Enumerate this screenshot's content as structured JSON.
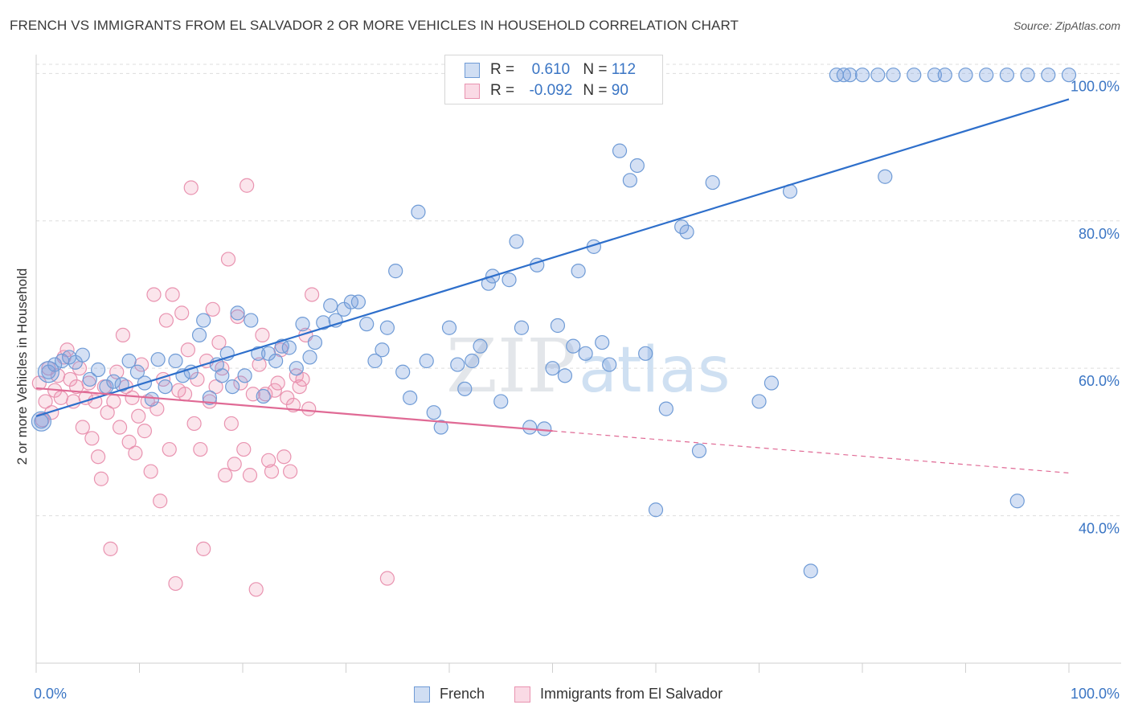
{
  "title": "FRENCH VS IMMIGRANTS FROM EL SALVADOR 2 OR MORE VEHICLES IN HOUSEHOLD CORRELATION CHART",
  "source": "Source: ZipAtlas.com",
  "watermark": {
    "zip": "ZIP",
    "atlas": "atlas"
  },
  "colors": {
    "french_fill": "rgba(120,160,220,0.32)",
    "french_stroke": "#6f9bd6",
    "french_line": "#2e6fcb",
    "elsal_fill": "rgba(240,150,180,0.25)",
    "elsal_stroke": "#e993b0",
    "elsal_line": "#e06a95",
    "axis_text": "#3a75c4",
    "grid": "#dddddd"
  },
  "legend": {
    "rows": [
      {
        "r_label": "R = ",
        "r_value": "0.610",
        "n_label": "N = ",
        "n_value": "112"
      },
      {
        "r_label": "R = ",
        "r_value": "-0.092",
        "n_label": "N = ",
        "n_value": "90"
      }
    ]
  },
  "chart_data": {
    "type": "scatter",
    "title": "FRENCH VS IMMIGRANTS FROM EL SALVADOR 2 OR MORE VEHICLES IN HOUSEHOLD CORRELATION CHART",
    "xlabel": "",
    "ylabel": "2 or more Vehicles in Household",
    "xlim": [
      0,
      100
    ],
    "ylim": [
      20,
      102
    ],
    "x_tick_labels": [
      "0.0%",
      "100.0%"
    ],
    "y_ticks": [
      40,
      60,
      80,
      100
    ],
    "y_tick_labels": [
      "40.0%",
      "60.0%",
      "80.0%",
      "100.0%"
    ],
    "grid": true,
    "legend_position": "top-center",
    "series": [
      {
        "name": "French",
        "points": [
          [
            0.5,
            52.8
          ],
          [
            1.2,
            59.5
          ],
          [
            1.8,
            60.5
          ],
          [
            2.5,
            61.0
          ],
          [
            3.2,
            61.5
          ],
          [
            3.8,
            60.8
          ],
          [
            4.5,
            61.8
          ],
          [
            5.2,
            58.5
          ],
          [
            6.0,
            59.8
          ],
          [
            6.8,
            57.5
          ],
          [
            7.5,
            58.2
          ],
          [
            8.3,
            57.8
          ],
          [
            9.0,
            61.0
          ],
          [
            9.8,
            59.5
          ],
          [
            10.5,
            58.0
          ],
          [
            11.2,
            55.8
          ],
          [
            11.8,
            61.2
          ],
          [
            12.5,
            57.5
          ],
          [
            13.5,
            61.0
          ],
          [
            14.2,
            59.0
          ],
          [
            15.0,
            59.5
          ],
          [
            15.8,
            64.5
          ],
          [
            16.2,
            66.5
          ],
          [
            16.8,
            56.0
          ],
          [
            17.5,
            60.5
          ],
          [
            18.0,
            59.0
          ],
          [
            18.5,
            62.0
          ],
          [
            19.0,
            57.5
          ],
          [
            19.5,
            67.5
          ],
          [
            20.2,
            59.0
          ],
          [
            20.8,
            66.5
          ],
          [
            21.5,
            62.0
          ],
          [
            22.0,
            56.2
          ],
          [
            22.5,
            62.0
          ],
          [
            23.2,
            61.0
          ],
          [
            23.8,
            63.0
          ],
          [
            24.5,
            62.8
          ],
          [
            25.2,
            60.0
          ],
          [
            25.8,
            66.0
          ],
          [
            26.5,
            61.5
          ],
          [
            27.0,
            63.5
          ],
          [
            27.8,
            66.2
          ],
          [
            28.5,
            68.5
          ],
          [
            29.0,
            66.5
          ],
          [
            29.8,
            68.0
          ],
          [
            30.5,
            69.0
          ],
          [
            31.2,
            69.0
          ],
          [
            32.0,
            66.0
          ],
          [
            32.8,
            61.0
          ],
          [
            33.5,
            62.5
          ],
          [
            34.0,
            65.5
          ],
          [
            34.8,
            73.2
          ],
          [
            35.5,
            59.5
          ],
          [
            36.2,
            56.0
          ],
          [
            37.0,
            81.2
          ],
          [
            37.8,
            61.0
          ],
          [
            38.5,
            54.0
          ],
          [
            39.2,
            52.0
          ],
          [
            40.0,
            65.5
          ],
          [
            40.8,
            60.5
          ],
          [
            41.5,
            57.2
          ],
          [
            42.2,
            61.0
          ],
          [
            43.0,
            63.0
          ],
          [
            43.8,
            71.5
          ],
          [
            44.2,
            72.5
          ],
          [
            45.0,
            55.5
          ],
          [
            45.8,
            72.0
          ],
          [
            46.5,
            77.2
          ],
          [
            47.0,
            65.5
          ],
          [
            47.8,
            52.0
          ],
          [
            48.5,
            74.0
          ],
          [
            49.2,
            51.8
          ],
          [
            50.0,
            60.0
          ],
          [
            50.5,
            65.8
          ],
          [
            51.2,
            59.0
          ],
          [
            52.0,
            63.0
          ],
          [
            52.5,
            73.2
          ],
          [
            53.2,
            62.0
          ],
          [
            54.0,
            76.5
          ],
          [
            54.8,
            63.5
          ],
          [
            55.5,
            60.5
          ],
          [
            56.5,
            89.5
          ],
          [
            57.5,
            85.5
          ],
          [
            58.2,
            87.5
          ],
          [
            59.0,
            62.0
          ],
          [
            60.0,
            40.8
          ],
          [
            61.0,
            54.5
          ],
          [
            62.5,
            79.2
          ],
          [
            63.0,
            78.5
          ],
          [
            64.2,
            48.8
          ],
          [
            65.5,
            85.2
          ],
          [
            70.0,
            55.5
          ],
          [
            71.2,
            58.0
          ],
          [
            73.0,
            84.0
          ],
          [
            75.0,
            32.5
          ],
          [
            77.5,
            99.8
          ],
          [
            78.2,
            99.8
          ],
          [
            78.8,
            99.8
          ],
          [
            80.0,
            99.8
          ],
          [
            81.5,
            99.8
          ],
          [
            82.2,
            86.0
          ],
          [
            83.0,
            99.8
          ],
          [
            85.0,
            99.8
          ],
          [
            87.0,
            99.8
          ],
          [
            88.0,
            99.8
          ],
          [
            90.0,
            99.8
          ],
          [
            92.0,
            99.8
          ],
          [
            94.0,
            99.8
          ],
          [
            95.0,
            42.0
          ],
          [
            96.0,
            99.8
          ],
          [
            98.0,
            99.8
          ],
          [
            100.0,
            99.8
          ]
        ]
      },
      {
        "name": "Immigrants from El Salvador",
        "points": [
          [
            0.3,
            58.0
          ],
          [
            0.6,
            53.0
          ],
          [
            0.9,
            55.5
          ],
          [
            1.2,
            60.0
          ],
          [
            1.5,
            54.0
          ],
          [
            1.8,
            57.0
          ],
          [
            2.1,
            59.0
          ],
          [
            2.4,
            56.0
          ],
          [
            2.7,
            61.5
          ],
          [
            3.0,
            62.5
          ],
          [
            3.3,
            58.5
          ],
          [
            3.6,
            55.5
          ],
          [
            3.9,
            57.5
          ],
          [
            4.2,
            60.0
          ],
          [
            4.5,
            52.0
          ],
          [
            4.8,
            56.0
          ],
          [
            5.1,
            58.0
          ],
          [
            5.4,
            50.5
          ],
          [
            5.7,
            55.5
          ],
          [
            6.0,
            48.0
          ],
          [
            6.3,
            45.0
          ],
          [
            6.6,
            57.5
          ],
          [
            6.9,
            54.0
          ],
          [
            7.2,
            35.5
          ],
          [
            7.5,
            55.5
          ],
          [
            7.8,
            59.5
          ],
          [
            8.1,
            52.0
          ],
          [
            8.4,
            64.5
          ],
          [
            8.7,
            57.5
          ],
          [
            9.0,
            50.0
          ],
          [
            9.3,
            56.0
          ],
          [
            9.6,
            48.5
          ],
          [
            9.9,
            53.5
          ],
          [
            10.2,
            60.5
          ],
          [
            10.5,
            51.5
          ],
          [
            10.8,
            55.5
          ],
          [
            11.1,
            46.0
          ],
          [
            11.4,
            70.0
          ],
          [
            11.7,
            54.5
          ],
          [
            12.0,
            42.0
          ],
          [
            12.3,
            58.5
          ],
          [
            12.6,
            66.5
          ],
          [
            12.9,
            49.0
          ],
          [
            13.2,
            70.0
          ],
          [
            13.5,
            30.8
          ],
          [
            13.8,
            57.0
          ],
          [
            14.1,
            67.5
          ],
          [
            14.4,
            56.5
          ],
          [
            14.7,
            62.5
          ],
          [
            15.0,
            84.5
          ],
          [
            15.3,
            52.5
          ],
          [
            15.6,
            58.5
          ],
          [
            15.9,
            49.0
          ],
          [
            16.2,
            35.5
          ],
          [
            16.5,
            61.0
          ],
          [
            16.8,
            55.5
          ],
          [
            17.1,
            68.0
          ],
          [
            17.4,
            57.5
          ],
          [
            17.7,
            63.5
          ],
          [
            18.0,
            60.0
          ],
          [
            18.3,
            45.5
          ],
          [
            18.6,
            74.8
          ],
          [
            18.9,
            52.5
          ],
          [
            19.2,
            47.0
          ],
          [
            19.5,
            67.0
          ],
          [
            19.8,
            58.0
          ],
          [
            20.1,
            49.0
          ],
          [
            20.4,
            84.8
          ],
          [
            20.7,
            45.5
          ],
          [
            21.0,
            56.5
          ],
          [
            21.3,
            30.0
          ],
          [
            21.6,
            60.5
          ],
          [
            21.9,
            64.5
          ],
          [
            22.2,
            56.5
          ],
          [
            22.5,
            47.5
          ],
          [
            22.8,
            46.0
          ],
          [
            23.1,
            57.0
          ],
          [
            23.4,
            58.0
          ],
          [
            23.7,
            62.5
          ],
          [
            24.0,
            48.0
          ],
          [
            24.3,
            56.0
          ],
          [
            24.6,
            46.0
          ],
          [
            24.9,
            55.0
          ],
          [
            25.2,
            59.0
          ],
          [
            25.5,
            57.5
          ],
          [
            25.8,
            58.5
          ],
          [
            26.1,
            64.5
          ],
          [
            26.4,
            54.5
          ],
          [
            26.7,
            70.0
          ],
          [
            34.0,
            31.5
          ]
        ]
      }
    ],
    "trend_lines": [
      {
        "series": "French",
        "x": [
          0,
          100
        ],
        "y": [
          53.5,
          96.5
        ],
        "style": "solid"
      },
      {
        "series": "Immigrants from El Salvador",
        "x": [
          0,
          50
        ],
        "y": [
          57.3,
          51.5
        ],
        "style": "solid"
      },
      {
        "series": "Immigrants from El Salvador",
        "x": [
          50,
          100
        ],
        "y": [
          51.5,
          45.8
        ],
        "style": "dashed"
      }
    ]
  },
  "bottom_legend": [
    {
      "label": "French"
    },
    {
      "label": "Immigrants from El Salvador"
    }
  ]
}
